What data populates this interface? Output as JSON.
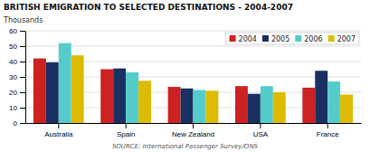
{
  "chart_data": {
    "type": "bar",
    "title": "BRITISH EMIGRATION TO SELECTED DESTINATIONS - 2004-2007",
    "ylabel": "Thousands",
    "source": "SOURCE: International Passenger Survey/ONS",
    "categories": [
      "Australia",
      "Spain",
      "New Zealand",
      "USA",
      "France"
    ],
    "series": [
      {
        "name": "2004",
        "color": "#cc2222",
        "values": [
          42,
          35,
          23.5,
          24,
          23
        ]
      },
      {
        "name": "2005",
        "color": "#1a3060",
        "values": [
          39.5,
          35.5,
          22.5,
          19,
          34
        ]
      },
      {
        "name": "2006",
        "color": "#55cccc",
        "values": [
          52,
          33,
          21.5,
          24,
          27
        ]
      },
      {
        "name": "2007",
        "color": "#ddbb00",
        "values": [
          44,
          27.5,
          21,
          20,
          18.5
        ]
      }
    ],
    "ylim": [
      0,
      60
    ],
    "yticks": [
      0,
      10,
      20,
      30,
      40,
      50,
      60
    ],
    "grid": true,
    "legend": "upper right"
  }
}
